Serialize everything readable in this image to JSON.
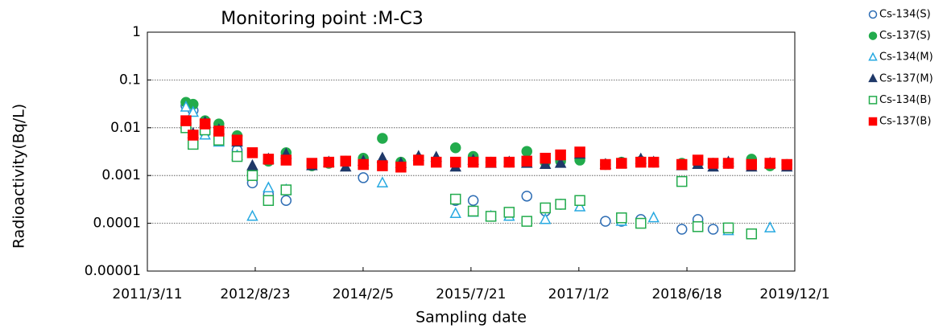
{
  "chart_data": {
    "type": "scatter",
    "title": "Monitoring point :M-C3",
    "xlabel": "Sampling date",
    "ylabel": "Radioactivity(Bq/L)",
    "yscale": "log",
    "grid": true,
    "legend": "right",
    "xlim": [
      "2011/3/11",
      "2019/12/1"
    ],
    "xticks": [
      "2011/3/11",
      "2012/8/23",
      "2014/2/5",
      "2015/7/21",
      "2017/1/2",
      "2018/6/18",
      "2019/12/1"
    ],
    "ylim": [
      1e-05,
      1
    ],
    "yticks": [
      1,
      0.1,
      0.01,
      0.001,
      0.0001,
      1e-05
    ],
    "x": [
      "2011/9/17",
      "2011/10/22",
      "2011/12/20",
      "2012/2/26",
      "2012/5/26",
      "2012/8/9",
      "2012/10/27",
      "2013/1/22",
      "2013/5/29",
      "2013/8/20",
      "2013/11/11",
      "2014/2/6",
      "2014/5/11",
      "2014/8/10",
      "2014/11/5",
      "2015/1/31",
      "2015/5/6",
      "2015/8/1",
      "2015/10/27",
      "2016/1/25",
      "2016/4/21",
      "2016/7/21",
      "2016/10/4",
      "2017/1/7",
      "2017/5/13",
      "2017/7/31",
      "2017/11/3",
      "2018/1/5",
      "2018/5/24",
      "2018/8/11",
      "2018/10/25",
      "2019/1/8",
      "2019/5/2",
      "2019/8/1",
      "2019/10/23"
    ],
    "series": [
      {
        "name": "Cs-134(S)",
        "color": "#2e6db4",
        "marker": "circle",
        "filled": false,
        "values": [
          0.029,
          0.023,
          0.008,
          0.006,
          0.0034,
          0.0007,
          0.0004,
          0.0003,
          null,
          null,
          null,
          0.0009,
          null,
          null,
          null,
          null,
          0.0003,
          0.0003,
          null,
          null,
          0.00037,
          0.00018,
          0.00025,
          null,
          0.00011,
          0.00011,
          0.00012,
          null,
          7.5e-05,
          0.00012,
          7.5e-05,
          null,
          null,
          null,
          null
        ]
      },
      {
        "name": "Cs-137(S)",
        "color": "#22ab4c",
        "marker": "circle",
        "filled": true,
        "values": [
          0.034,
          0.031,
          0.014,
          0.012,
          0.0068,
          0.001,
          0.002,
          0.003,
          0.0016,
          0.0018,
          0.002,
          0.0023,
          0.006,
          0.0019,
          0.0022,
          0.002,
          0.0038,
          0.0025,
          0.0019,
          0.0019,
          0.0032,
          0.0019,
          0.002,
          0.0021,
          0.0017,
          0.0019,
          0.002,
          0.0019,
          0.0018,
          0.0018,
          0.0018,
          0.0018,
          0.0022,
          0.0016,
          0.0017
        ]
      },
      {
        "name": "Cs-134(M)",
        "color": "#27a9e1",
        "marker": "triangle",
        "filled": false,
        "values": [
          0.027,
          0.021,
          0.007,
          0.005,
          0.0026,
          0.00014,
          0.00055,
          0.0005,
          null,
          null,
          null,
          null,
          0.0007,
          null,
          null,
          null,
          0.00016,
          0.00017,
          0.00014,
          0.00014,
          null,
          0.00012,
          null,
          0.00022,
          null,
          0.00011,
          null,
          0.00013,
          null,
          null,
          null,
          7e-05,
          null,
          8e-05,
          null
        ]
      },
      {
        "name": "Cs-137(M)",
        "color": "#1f3868",
        "marker": "triangle",
        "filled": true,
        "values": [
          0.012,
          0.0075,
          0.013,
          0.009,
          0.005,
          0.0016,
          0.0022,
          0.0028,
          0.0016,
          0.0019,
          0.0015,
          0.002,
          0.0023,
          0.0018,
          0.0025,
          0.0024,
          0.0015,
          0.0021,
          0.0018,
          0.0019,
          0.0018,
          0.0017,
          0.0018,
          0.0028,
          0.0017,
          0.0018,
          0.0022,
          0.0019,
          0.0016,
          0.0017,
          0.0015,
          0.0019,
          0.0015,
          0.0018,
          0.0015
        ]
      },
      {
        "name": "Cs-134(B)",
        "color": "#22ab4c",
        "marker": "square",
        "filled": false,
        "values": [
          0.01,
          0.0045,
          0.009,
          0.0055,
          0.0025,
          0.001,
          0.0003,
          0.0005,
          null,
          null,
          null,
          null,
          null,
          null,
          null,
          null,
          0.00032,
          0.00018,
          0.00014,
          0.00017,
          0.00011,
          0.00021,
          0.00025,
          0.0003,
          null,
          0.00013,
          0.0001,
          null,
          0.00075,
          8.5e-05,
          null,
          8e-05,
          6e-05,
          null,
          null
        ]
      },
      {
        "name": "Cs-137(B)",
        "color": "#ff0000",
        "marker": "square",
        "filled": true,
        "values": [
          0.014,
          0.007,
          0.012,
          0.0085,
          0.0055,
          0.003,
          0.0022,
          0.0021,
          0.0018,
          0.0019,
          0.002,
          0.0017,
          0.0016,
          0.0015,
          0.0021,
          0.0019,
          0.0019,
          0.0019,
          0.0019,
          0.0019,
          0.002,
          0.0023,
          0.0027,
          0.0031,
          0.0017,
          0.0018,
          0.0019,
          0.0019,
          0.0017,
          0.0021,
          0.0018,
          0.0018,
          0.0017,
          0.0018,
          0.0017
        ]
      }
    ]
  }
}
